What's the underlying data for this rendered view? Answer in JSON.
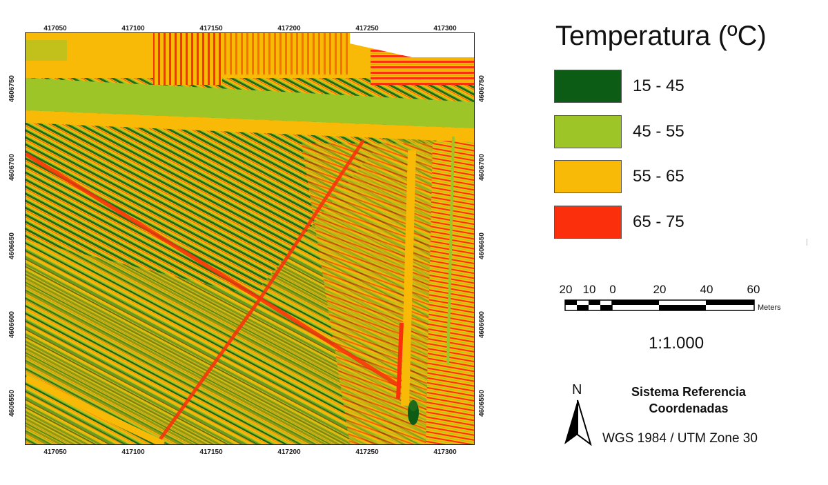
{
  "map": {
    "x_ticks": [
      "417050",
      "417100",
      "417150",
      "417200",
      "417250",
      "417300"
    ],
    "y_ticks": [
      "4606750",
      "4606700",
      "4606650",
      "4606600",
      "4606550"
    ],
    "raster": "thermal orthomosaic of crop rows"
  },
  "legend": {
    "title": "Temperatura (ºC)",
    "classes": [
      {
        "label": "15 - 45",
        "color": "#0d5c16"
      },
      {
        "label": "45 - 55",
        "color": "#9ec528"
      },
      {
        "label": "55 - 65",
        "color": "#f8ba07"
      },
      {
        "label": "65 - 75",
        "color": "#fb2f0b"
      }
    ]
  },
  "scalebar": {
    "labels": [
      "20",
      "10",
      "0",
      "20",
      "40",
      "60"
    ],
    "units": "Meters"
  },
  "scale_ratio": "1:1.000",
  "north_arrow": {
    "letter": "N"
  },
  "crs": {
    "title": "Sistema Referencia Coordenadas",
    "value": "WGS 1984 / UTM Zone 30"
  },
  "icons": {
    "north": "north-arrow-icon"
  }
}
